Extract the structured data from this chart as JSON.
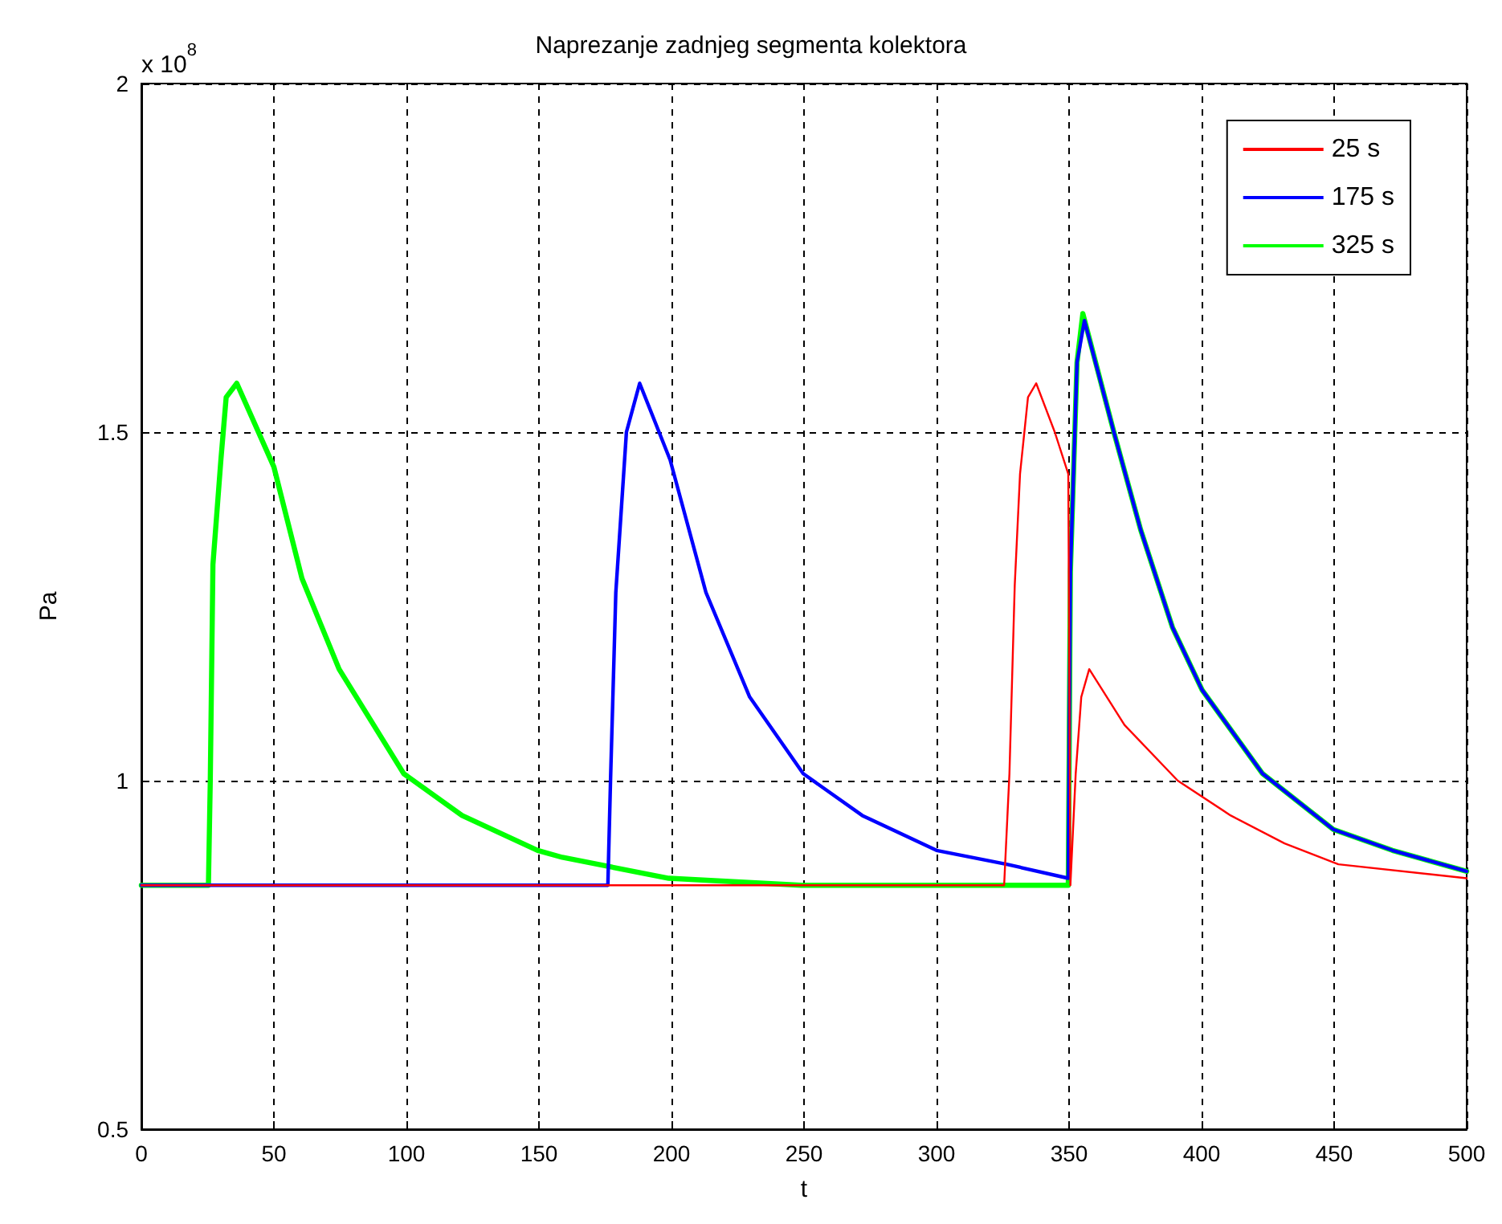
{
  "chart_data": {
    "type": "line",
    "title": "Naprezanje zadnjeg segmenta kolektora",
    "xlabel": "t",
    "ylabel": "Pa",
    "annotations": [
      "x 10$^{8}$"
    ],
    "xlim": [
      0,
      500
    ],
    "xticks": [
      0,
      50,
      100,
      150,
      200,
      250,
      300,
      350,
      400,
      450,
      500
    ],
    "ylim": [
      0.5,
      2
    ],
    "yticks": [
      0.5,
      1,
      1.5,
      2
    ],
    "grid": true,
    "legend": "top right",
    "marker": "none",
    "line_style": "solid",
    "series": [
      {
        "name": "25 s",
        "color": "#ff0000",
        "x": [
          0,
          325.5,
          327.5,
          329.5,
          331.5,
          334.5,
          337.6,
          344.6,
          349.7,
          350.5,
          352.5,
          354.6,
          357.6,
          370.9,
          391,
          411,
          431.3,
          451.6,
          500
        ],
        "values": [
          0.85,
          0.85,
          1.01,
          1.28,
          1.44,
          1.55,
          1.57,
          1.5,
          1.44,
          0.85,
          1.01,
          1.12,
          1.16,
          1.08,
          1.0,
          0.95,
          0.91,
          0.88,
          0.86
        ]
      },
      {
        "name": "175 s",
        "color": "#0000ff",
        "x": [
          0,
          176,
          177,
          179,
          183,
          188,
          199.5,
          213,
          229.5,
          249.7,
          272,
          300,
          326.5,
          349.7,
          350.5,
          353,
          355.8,
          366.9,
          377,
          389,
          400.2,
          423,
          449.7,
          472,
          500
        ],
        "values": [
          0.85,
          0.85,
          1.0,
          1.27,
          1.5,
          1.57,
          1.46,
          1.27,
          1.12,
          1.01,
          0.95,
          0.9,
          0.88,
          0.86,
          1.3,
          1.6,
          1.66,
          1.5,
          1.36,
          1.22,
          1.13,
          1.01,
          0.93,
          0.9,
          0.87
        ]
      },
      {
        "name": "325 s",
        "color": "#00ff00",
        "x": [
          0,
          25.3,
          26,
          27,
          30,
          32,
          36,
          50,
          60.6,
          74.6,
          99,
          121,
          149.5,
          158.8,
          199,
          249,
          349.7,
          350.5,
          353,
          355.2,
          366.9,
          377,
          389,
          400.2,
          423,
          449.7,
          472,
          500
        ],
        "values": [
          0.85,
          0.85,
          1.0,
          1.31,
          1.46,
          1.55,
          1.57,
          1.45,
          1.29,
          1.16,
          1.01,
          0.95,
          0.9,
          0.89,
          0.86,
          0.85,
          0.85,
          1.3,
          1.6,
          1.67,
          1.5,
          1.36,
          1.22,
          1.13,
          1.01,
          0.93,
          0.9,
          0.87
        ]
      }
    ]
  }
}
